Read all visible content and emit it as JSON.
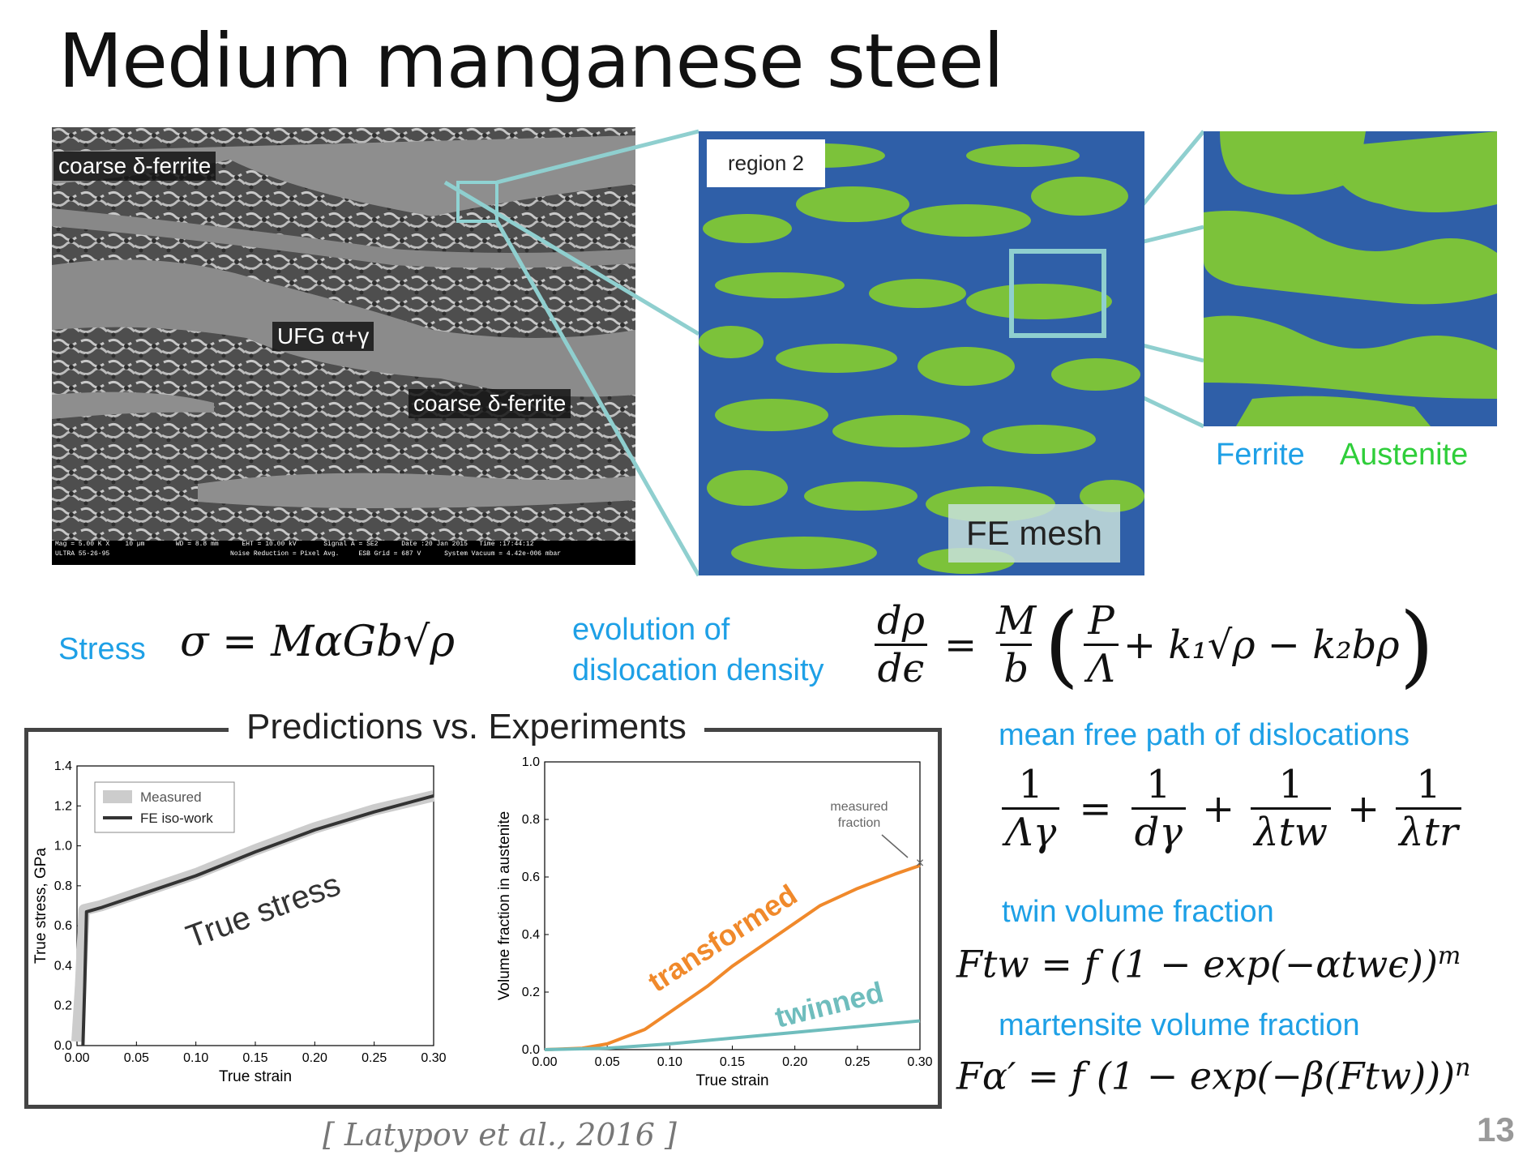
{
  "slide": {
    "title": "Medium manganese steel",
    "page_number": "13",
    "citation": "[ Latypov et al., 2016 ]"
  },
  "sem": {
    "label_top": "coarse δ-ferrite",
    "label_mid": "UFG α+γ",
    "label_bot": "coarse δ-ferrite",
    "infobar_1": "Mag = 5.00 K X    10 µm        WD = 8.8 mm      EHT = 10.00 kV       Signal A = SE2      Date :20 Jan 2015   Time :17:44:12",
    "infobar_2": "ULTRA 55-26-95                               Noise Reduction = Pixel Avg.     ESB Grid = 687 V      System Vacuum = 4.42e-006 mbar"
  },
  "mesh": {
    "region_label": "region 2",
    "fe_label": "FE mesh",
    "legend_ferrite": "Ferrite",
    "legend_austenite": "Austenite",
    "color_ferrite": "#2f5fa8",
    "color_austenite": "#7cc23a"
  },
  "equations": {
    "stress_label": "Stress",
    "stress_eq": "σ = MαGb√ρ",
    "evolution_label_1": "evolution of",
    "evolution_label_2": "dislocation density",
    "evo_lhs_num": "dρ",
    "evo_lhs_den": "dϵ",
    "evo_M": "M",
    "evo_b": "b",
    "evo_P": "P",
    "evo_Lambda": "Λ",
    "evo_rest": "+ k₁√ρ − k₂bρ",
    "mfp_label": "mean free path of dislocations",
    "mfp_one": "1",
    "mfp_den_1": "Λγ",
    "mfp_den_2": "dγ",
    "mfp_den_3": "λtw",
    "mfp_den_4": "λtr",
    "twin_label": "twin volume fraction",
    "twin_eq": "Ftw = f (1 − exp(−αtwϵ))",
    "twin_exp": "m",
    "mart_label": "martensite volume fraction",
    "mart_eq": "Fα′ = f (1 − exp(−β(Ftw)))",
    "mart_exp": "n"
  },
  "panel": {
    "title": "Predictions vs. Experiments"
  },
  "chart_data": [
    {
      "type": "line",
      "xlabel": "True strain",
      "ylabel": "True stress, GPa",
      "xlim": [
        0,
        0.3
      ],
      "ylim": [
        0,
        1.4
      ],
      "xticks": [
        "0.00",
        "0.05",
        "0.10",
        "0.15",
        "0.20",
        "0.25",
        "0.30"
      ],
      "yticks": [
        "0.0",
        "0.2",
        "0.4",
        "0.6",
        "0.8",
        "1.0",
        "1.2",
        "1.4"
      ],
      "legend": [
        "Measured",
        "FE iso-work"
      ],
      "legend_position": "top-left",
      "annotation": "True stress",
      "series": [
        {
          "name": "Measured",
          "color": "#cccccc",
          "x": [
            0,
            0.003,
            0.006,
            0.02,
            0.05,
            0.1,
            0.15,
            0.2,
            0.25,
            0.3
          ],
          "y": [
            0.02,
            0.3,
            0.68,
            0.7,
            0.76,
            0.86,
            0.98,
            1.09,
            1.18,
            1.25
          ]
        },
        {
          "name": "FE iso-work",
          "color": "#333333",
          "x": [
            0.005,
            0.0065,
            0.008,
            0.02,
            0.05,
            0.1,
            0.15,
            0.2,
            0.25,
            0.3
          ],
          "y": [
            0.0,
            0.3,
            0.67,
            0.69,
            0.75,
            0.85,
            0.97,
            1.08,
            1.17,
            1.25
          ]
        }
      ]
    },
    {
      "type": "line",
      "xlabel": "True strain",
      "ylabel": "Volume fraction in austenite",
      "xlim": [
        0,
        0.3
      ],
      "ylim": [
        0,
        1.0
      ],
      "xticks": [
        "0.00",
        "0.05",
        "0.10",
        "0.15",
        "0.20",
        "0.25",
        "0.30"
      ],
      "yticks": [
        "0.0",
        "0.2",
        "0.4",
        "0.6",
        "0.8",
        "1.0"
      ],
      "annotation": "measured fraction",
      "measured_point": {
        "x": 0.3,
        "y": 0.65
      },
      "series": [
        {
          "name": "transformed",
          "color": "#f0892b",
          "x": [
            0,
            0.03,
            0.05,
            0.08,
            0.1,
            0.13,
            0.15,
            0.18,
            0.2,
            0.22,
            0.25,
            0.28,
            0.3
          ],
          "y": [
            0,
            0.005,
            0.02,
            0.07,
            0.13,
            0.22,
            0.29,
            0.38,
            0.44,
            0.5,
            0.56,
            0.61,
            0.64
          ]
        },
        {
          "name": "twinned",
          "color": "#6fbdbd",
          "x": [
            0,
            0.05,
            0.1,
            0.15,
            0.2,
            0.25,
            0.3
          ],
          "y": [
            0,
            0.005,
            0.02,
            0.04,
            0.06,
            0.08,
            0.1
          ]
        }
      ]
    }
  ]
}
